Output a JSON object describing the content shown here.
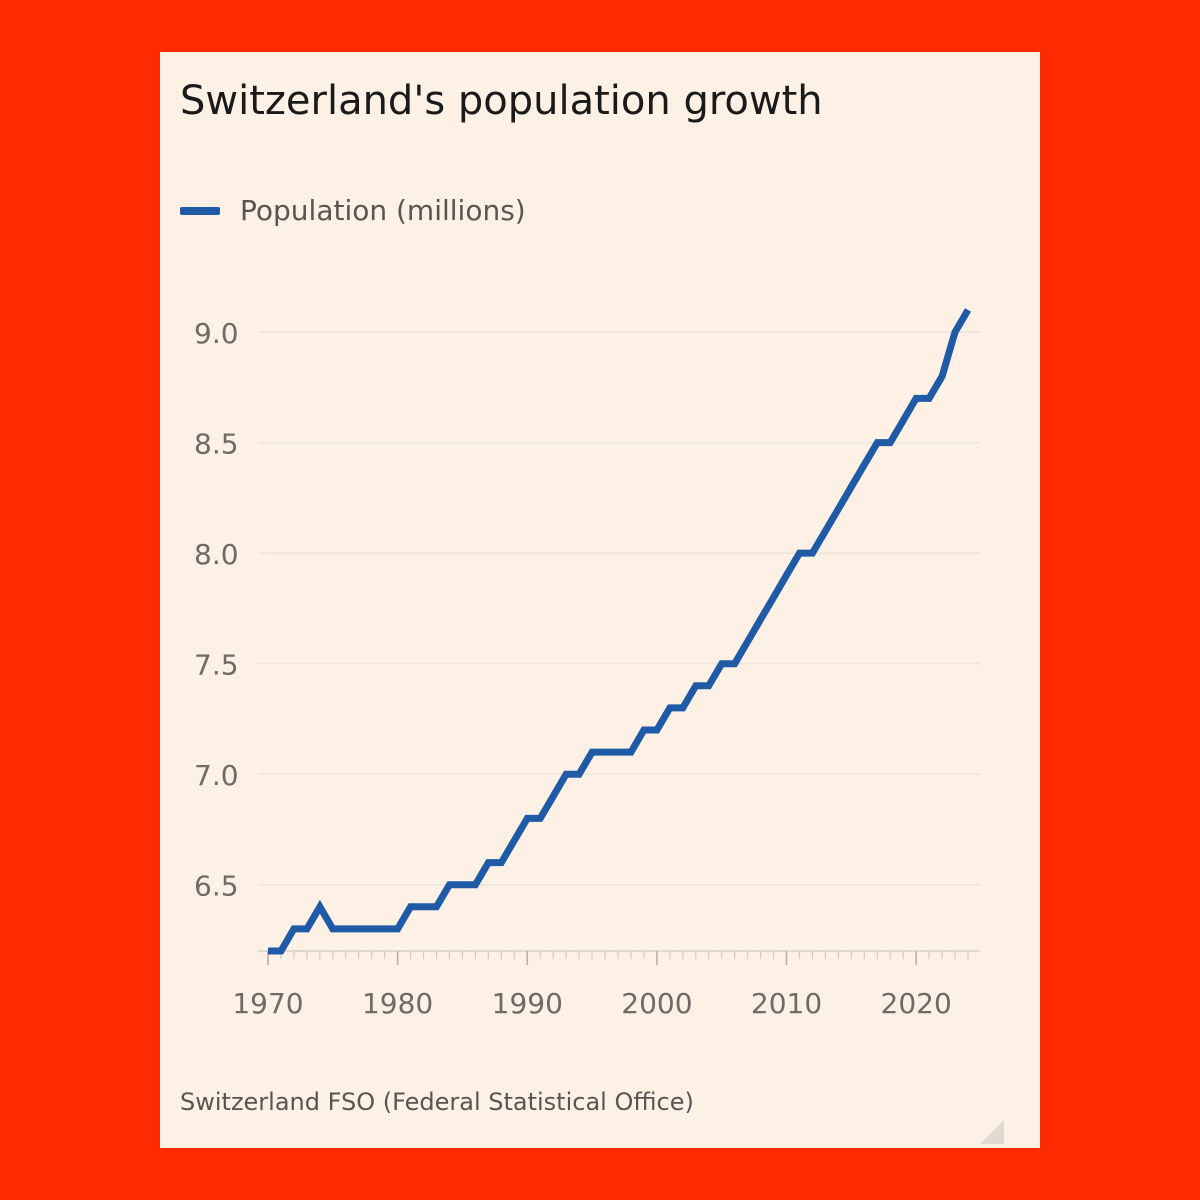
{
  "colors": {
    "background": "#ff2a00",
    "card": "#fdf1e6",
    "line": "#1f5aa6",
    "grid": "#ece3da",
    "tick_text": "#6e6a66"
  },
  "chart_data": {
    "type": "line",
    "title": "Switzerland's population growth",
    "source": "Switzerland FSO (Federal Statistical Office)",
    "legend_position": "top-left",
    "grid": true,
    "series": [
      {
        "name": "Population (millions)",
        "x": [
          1970,
          1971,
          1972,
          1973,
          1974,
          1975,
          1976,
          1977,
          1978,
          1979,
          1980,
          1981,
          1982,
          1983,
          1984,
          1985,
          1986,
          1987,
          1988,
          1989,
          1990,
          1991,
          1992,
          1993,
          1994,
          1995,
          1996,
          1997,
          1998,
          1999,
          2000,
          2001,
          2002,
          2003,
          2004,
          2005,
          2006,
          2007,
          2008,
          2009,
          2010,
          2011,
          2012,
          2013,
          2014,
          2015,
          2016,
          2017,
          2018,
          2019,
          2020,
          2021,
          2022,
          2023,
          2024
        ],
        "values": [
          6.2,
          6.2,
          6.3,
          6.3,
          6.4,
          6.3,
          6.3,
          6.3,
          6.3,
          6.3,
          6.3,
          6.4,
          6.4,
          6.4,
          6.5,
          6.5,
          6.5,
          6.6,
          6.6,
          6.7,
          6.8,
          6.8,
          6.9,
          7.0,
          7.0,
          7.1,
          7.1,
          7.1,
          7.1,
          7.2,
          7.2,
          7.3,
          7.3,
          7.4,
          7.4,
          7.5,
          7.5,
          7.6,
          7.7,
          7.8,
          7.9,
          8.0,
          8.0,
          8.1,
          8.2,
          8.3,
          8.4,
          8.5,
          8.5,
          8.6,
          8.7,
          8.7,
          8.8,
          9.0,
          9.1
        ]
      }
    ],
    "xlim": [
      1970,
      2024
    ],
    "ylim": [
      6.2,
      9.1
    ],
    "x_ticks": [
      1970,
      1980,
      1990,
      2000,
      2010,
      2020
    ],
    "y_ticks": [
      6.5,
      7.0,
      7.5,
      8.0,
      8.5,
      9.0
    ],
    "y_tick_labels": [
      "6.5",
      "7.0",
      "7.5",
      "8.0",
      "8.5",
      "9.0"
    ]
  }
}
